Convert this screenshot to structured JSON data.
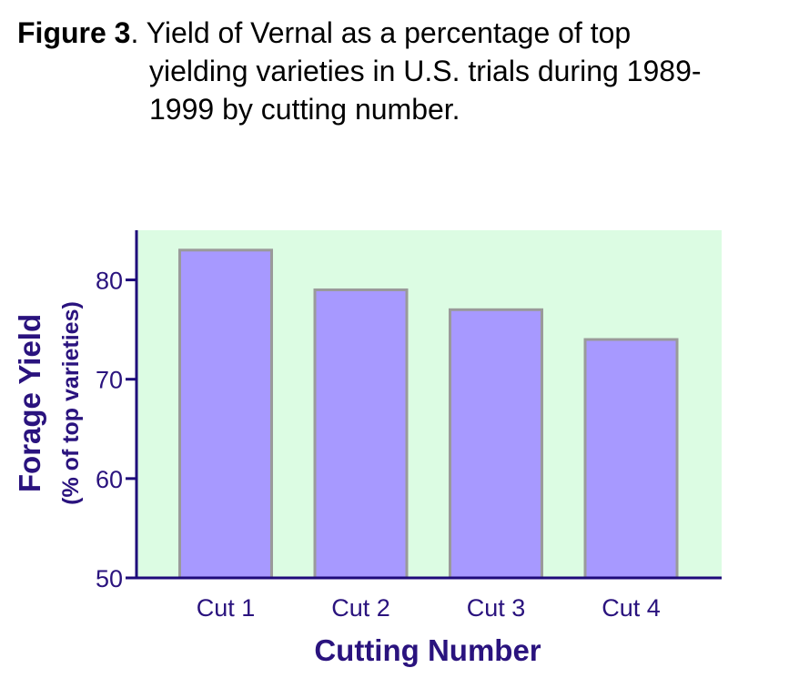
{
  "figure": {
    "label": "Figure 3",
    "caption_line1": ". Yield of Vernal as a percentage of top",
    "caption_line2": "yielding varieties in U.S. trials during 1989-",
    "caption_line3": "1999 by cutting number."
  },
  "colors": {
    "plot_background": "#dcfce3",
    "bar_fill": "#a799ff",
    "bar_stroke": "#9a9a9a",
    "axis": "#1e0a7a",
    "label_text": "#2a137e"
  },
  "chart_data": {
    "type": "bar",
    "categories": [
      "Cut 1",
      "Cut 2",
      "Cut 3",
      "Cut 4"
    ],
    "values": [
      83,
      79,
      77,
      74
    ],
    "title": "",
    "xlabel": "Cutting Number",
    "ylabel": "Forage Yield",
    "ylabel_sub": "(% of top varieties)",
    "ylim": [
      50,
      85
    ],
    "yticks": [
      50,
      60,
      70,
      80
    ],
    "grid": false,
    "legend": "none"
  }
}
